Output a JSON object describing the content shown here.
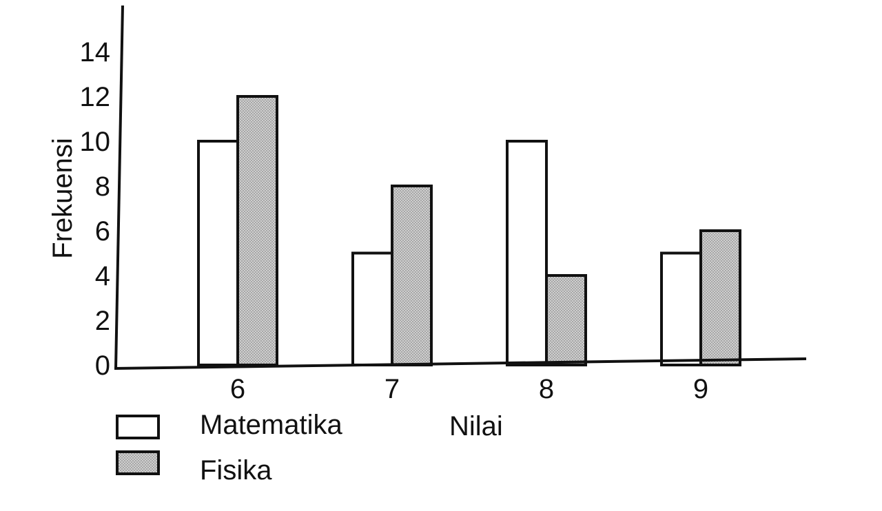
{
  "chart_data": {
    "type": "bar",
    "title": "",
    "xlabel": "Nilai",
    "ylabel": "Frekuensi",
    "categories": [
      "6",
      "7",
      "8",
      "9"
    ],
    "series": [
      {
        "name": "Matematika",
        "values": [
          10,
          5,
          10,
          5
        ],
        "color": "#ffffff"
      },
      {
        "name": "Fisika",
        "values": [
          12,
          8,
          4,
          6
        ],
        "color": "#c8c8c8"
      }
    ],
    "ylim": [
      0,
      16
    ],
    "yticks": [
      "0",
      "2",
      "4",
      "6",
      "8",
      "10",
      "12",
      "14"
    ],
    "grid": false,
    "legend_position": "bottom-left"
  }
}
